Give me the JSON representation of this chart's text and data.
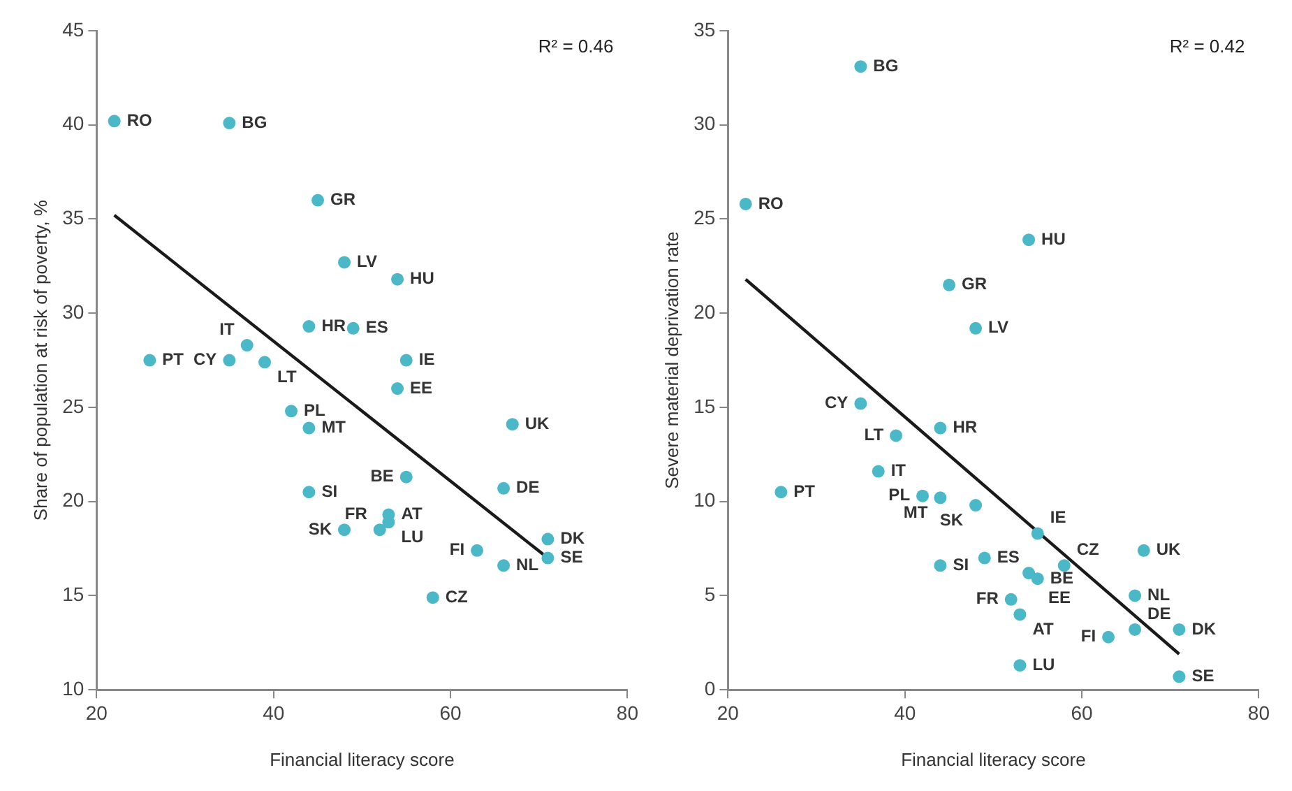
{
  "chart_data": [
    {
      "type": "scatter",
      "xlabel": "Financial literacy score",
      "ylabel": "Share of population at risk of poverty, %",
      "annotations": [
        "R² = 0.46"
      ],
      "xlim": [
        20,
        80
      ],
      "xticks": [
        20,
        40,
        60,
        80
      ],
      "ylim": [
        10,
        45
      ],
      "yticks": [
        10,
        15,
        20,
        25,
        30,
        35,
        40,
        45
      ],
      "grid": false,
      "legend": false,
      "series": [
        {
          "type": "scatter",
          "color": "#4bb8c8",
          "marker": "circle",
          "x": [
            22,
            35,
            45,
            48,
            54,
            44,
            49,
            37,
            26,
            35,
            39,
            55,
            54,
            42,
            44,
            67,
            55,
            66,
            44,
            53,
            53,
            52,
            48,
            71,
            63,
            71,
            66,
            58
          ],
          "values": [
            40.2,
            40.1,
            36.0,
            32.7,
            31.8,
            29.3,
            29.2,
            28.3,
            27.5,
            27.5,
            27.4,
            27.5,
            26.0,
            24.8,
            23.9,
            24.1,
            21.3,
            20.7,
            20.5,
            19.3,
            18.9,
            18.5,
            18.5,
            18.0,
            17.4,
            17.0,
            16.6,
            14.9
          ],
          "value_labels": [
            "RO",
            "BG",
            "GR",
            "LV",
            "HU",
            "HR",
            "ES",
            "IT",
            "PT",
            "CY",
            "LT",
            "IE",
            "EE",
            "PL",
            "MT",
            "UK",
            "BE",
            "DE",
            "SI",
            "AT",
            "LU",
            "FR",
            "SK",
            "DK",
            "FI",
            "SE",
            "NL",
            "CZ"
          ]
        },
        {
          "type": "line",
          "color": "#1a1a1a",
          "marker": "none",
          "line_style": "solid",
          "x": [
            22,
            71
          ],
          "values": [
            35.2,
            17.0
          ]
        }
      ]
    },
    {
      "type": "scatter",
      "xlabel": "Financial literacy score",
      "ylabel": "Severe material deprivation rate",
      "annotations": [
        "R² = 0.42"
      ],
      "xlim": [
        20,
        80
      ],
      "xticks": [
        20,
        40,
        60,
        80
      ],
      "ylim": [
        0,
        35
      ],
      "yticks": [
        0,
        5,
        10,
        15,
        20,
        25,
        30,
        35
      ],
      "grid": false,
      "legend": false,
      "series": [
        {
          "type": "scatter",
          "color": "#4bb8c8",
          "marker": "circle",
          "x": [
            35,
            22,
            54,
            45,
            48,
            35,
            44,
            39,
            37,
            26,
            42,
            44,
            48,
            55,
            67,
            49,
            44,
            58,
            54,
            55,
            52,
            53,
            53,
            66,
            66,
            71,
            63,
            71
          ],
          "values": [
            33.1,
            25.8,
            23.9,
            21.5,
            19.2,
            15.2,
            13.9,
            13.5,
            11.6,
            10.5,
            10.3,
            10.2,
            9.8,
            8.3,
            7.4,
            7.0,
            6.6,
            6.6,
            6.2,
            5.9,
            4.8,
            4.0,
            1.3,
            5.0,
            3.2,
            3.2,
            2.8,
            0.7
          ],
          "value_labels": [
            "BG",
            "RO",
            "HU",
            "GR",
            "LV",
            "CY",
            "HR",
            "LT",
            "IT",
            "PT",
            "PL",
            "MT",
            "SK",
            "IE",
            "UK",
            "ES",
            "SI",
            "CZ",
            "EE",
            "BE",
            "FR",
            "AT",
            "LU",
            "NL",
            "DE",
            "DK",
            "FI",
            "SE"
          ]
        },
        {
          "type": "line",
          "color": "#1a1a1a",
          "marker": "none",
          "line_style": "solid",
          "x": [
            22,
            71
          ],
          "values": [
            21.8,
            1.9
          ]
        }
      ]
    }
  ]
}
